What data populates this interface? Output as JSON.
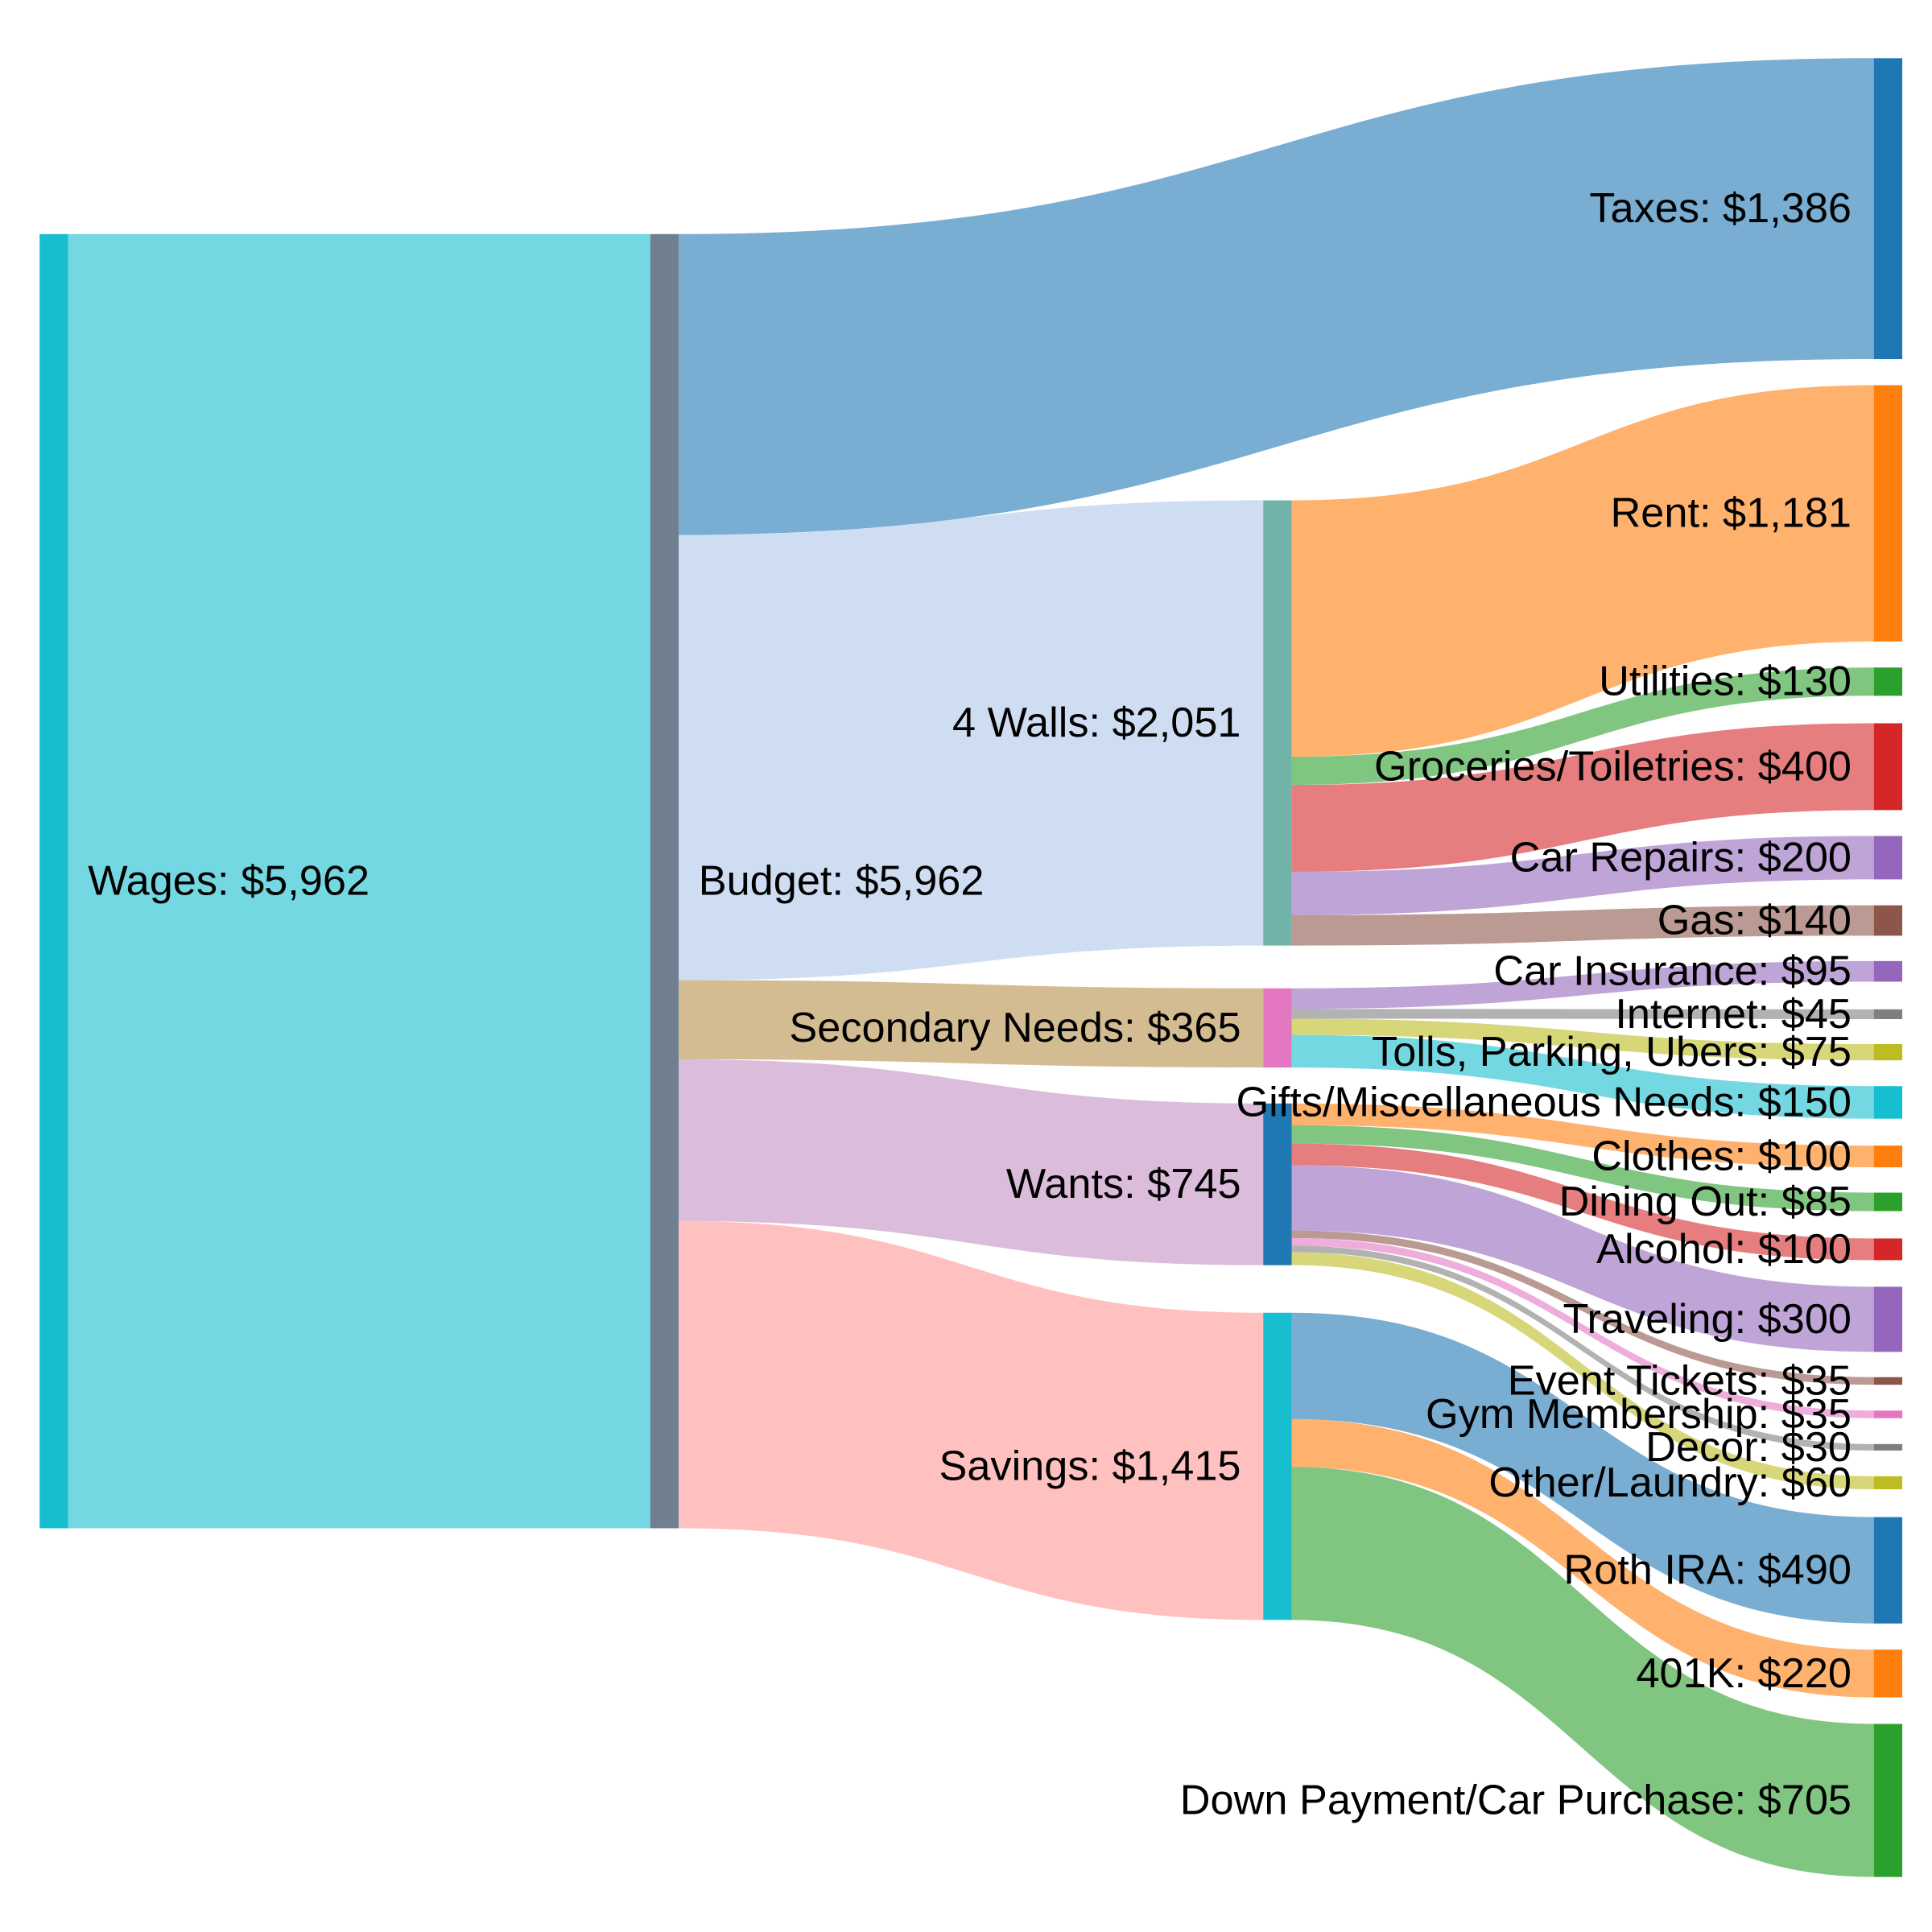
{
  "chart_data": {
    "type": "sankey",
    "title": "",
    "nodes": [
      {
        "name": "Wages",
        "label": "Wages: $5,962",
        "color": "#17becf"
      },
      {
        "name": "Budget",
        "label": "Budget: $5,962",
        "color": "#708090"
      },
      {
        "name": "Taxes",
        "label": "Taxes: $1,386",
        "color": "#1f77b4"
      },
      {
        "name": "4 Walls",
        "label": "4 Walls: $2,051",
        "color": "#72b3a9"
      },
      {
        "name": "Secondary Needs",
        "label": "Secondary Needs: $365",
        "color": "#e377c2"
      },
      {
        "name": "Wants",
        "label": "Wants: $745",
        "color": "#1f77b4"
      },
      {
        "name": "Savings",
        "label": "Savings: $1,415",
        "color": "#17becf"
      },
      {
        "name": "Rent",
        "label": "Rent: $1,181",
        "color": "#ff7f0e"
      },
      {
        "name": "Utilities",
        "label": "Utilities: $130",
        "color": "#2ca02c"
      },
      {
        "name": "Groceries/Toiletries",
        "label": "Groceries/Toiletries: $400",
        "color": "#d62728"
      },
      {
        "name": "Car Repairs",
        "label": "Car Repairs: $200",
        "color": "#9467bd"
      },
      {
        "name": "Gas",
        "label": "Gas: $140",
        "color": "#8c564b"
      },
      {
        "name": "Car Insurance",
        "label": "Car Insurance: $95",
        "color": "#9467bd"
      },
      {
        "name": "Internet",
        "label": "Internet: $45",
        "color": "#7f7f7f"
      },
      {
        "name": "Tolls, Parking, Ubers",
        "label": "Tolls, Parking, Ubers: $75",
        "color": "#bcbd22"
      },
      {
        "name": "Gifts/Miscellaneous Needs",
        "label": "Gifts/Miscellaneous Needs: $150",
        "color": "#17becf"
      },
      {
        "name": "Clothes",
        "label": "Clothes: $100",
        "color": "#ff7f0e"
      },
      {
        "name": "Dining Out",
        "label": "Dining Out: $85",
        "color": "#2ca02c"
      },
      {
        "name": "Alcohol",
        "label": "Alcohol: $100",
        "color": "#d62728"
      },
      {
        "name": "Traveling",
        "label": "Traveling: $300",
        "color": "#9467bd"
      },
      {
        "name": "Event Tickets",
        "label": "Event Tickets: $35",
        "color": "#8c564b"
      },
      {
        "name": "Gym Membership",
        "label": "Gym Membership: $35",
        "color": "#e377c2"
      },
      {
        "name": "Decor",
        "label": "Decor: $30",
        "color": "#7f7f7f"
      },
      {
        "name": "Other/Laundry",
        "label": "Other/Laundry: $60",
        "color": "#bcbd22"
      },
      {
        "name": "Roth IRA",
        "label": "Roth IRA: $490",
        "color": "#1f77b4"
      },
      {
        "name": "401K",
        "label": "401K: $220",
        "color": "#ff7f0e"
      },
      {
        "name": "Down Payment/Car Purchase",
        "label": "Down Payment/Car Purchase: $705",
        "color": "#2ca02c"
      }
    ],
    "links": [
      {
        "source": 0,
        "target": 1,
        "value": 5962,
        "color": "#17becf"
      },
      {
        "source": 1,
        "target": 2,
        "value": 1386,
        "color": "#1f77b4"
      },
      {
        "source": 1,
        "target": 3,
        "value": 2051,
        "color": "#aec7e8"
      },
      {
        "source": 1,
        "target": 4,
        "value": 365,
        "color": "#b8904a"
      },
      {
        "source": 1,
        "target": 5,
        "value": 745,
        "color": "#c38fc3"
      },
      {
        "source": 1,
        "target": 6,
        "value": 1415,
        "color": "#ff9896"
      },
      {
        "source": 3,
        "target": 7,
        "value": 1181,
        "color": "#ff7f0e"
      },
      {
        "source": 3,
        "target": 8,
        "value": 130,
        "color": "#2ca02c"
      },
      {
        "source": 3,
        "target": 9,
        "value": 400,
        "color": "#d62728"
      },
      {
        "source": 3,
        "target": 10,
        "value": 200,
        "color": "#9467bd"
      },
      {
        "source": 3,
        "target": 11,
        "value": 140,
        "color": "#8c564b"
      },
      {
        "source": 4,
        "target": 12,
        "value": 95,
        "color": "#9467bd"
      },
      {
        "source": 4,
        "target": 13,
        "value": 45,
        "color": "#7f7f7f"
      },
      {
        "source": 4,
        "target": 14,
        "value": 75,
        "color": "#bcbd22"
      },
      {
        "source": 4,
        "target": 15,
        "value": 150,
        "color": "#17becf"
      },
      {
        "source": 5,
        "target": 16,
        "value": 100,
        "color": "#ff7f0e"
      },
      {
        "source": 5,
        "target": 17,
        "value": 85,
        "color": "#2ca02c"
      },
      {
        "source": 5,
        "target": 18,
        "value": 100,
        "color": "#d62728"
      },
      {
        "source": 5,
        "target": 19,
        "value": 300,
        "color": "#9467bd"
      },
      {
        "source": 5,
        "target": 20,
        "value": 35,
        "color": "#8c564b"
      },
      {
        "source": 5,
        "target": 21,
        "value": 35,
        "color": "#e377c2"
      },
      {
        "source": 5,
        "target": 22,
        "value": 30,
        "color": "#7f7f7f"
      },
      {
        "source": 5,
        "target": 23,
        "value": 60,
        "color": "#bcbd22"
      },
      {
        "source": 6,
        "target": 24,
        "value": 490,
        "color": "#1f77b4"
      },
      {
        "source": 6,
        "target": 25,
        "value": 220,
        "color": "#ff7f0e"
      },
      {
        "source": 6,
        "target": 26,
        "value": 705,
        "color": "#2ca02c"
      }
    ]
  }
}
